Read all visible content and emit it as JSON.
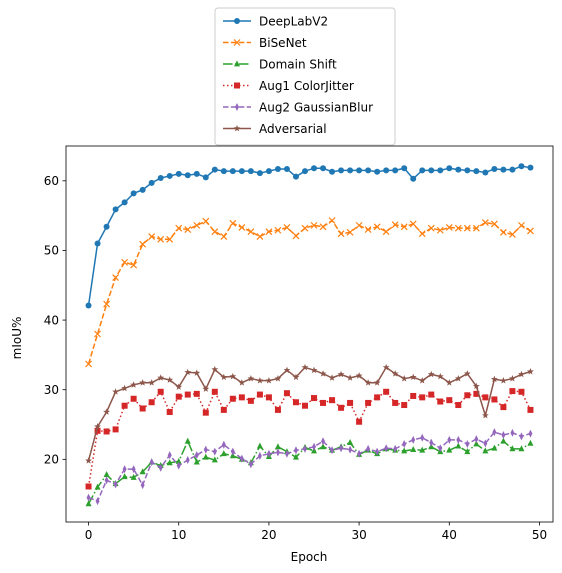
{
  "chart_data": {
    "type": "line",
    "xlabel": "Epoch",
    "ylabel": "mIoU%",
    "xlim": [
      -2.5,
      51.5
    ],
    "ylim": [
      11,
      65
    ],
    "xticks": [
      0,
      10,
      20,
      30,
      40,
      50
    ],
    "yticks": [
      20,
      30,
      40,
      50,
      60
    ],
    "grid": false,
    "legend_position": "above plot, centered",
    "x": [
      0,
      1,
      2,
      3,
      4,
      5,
      6,
      7,
      8,
      9,
      10,
      11,
      12,
      13,
      14,
      15,
      16,
      17,
      18,
      19,
      20,
      21,
      22,
      23,
      24,
      25,
      26,
      27,
      28,
      29,
      30,
      31,
      32,
      33,
      34,
      35,
      36,
      37,
      38,
      39,
      40,
      41,
      42,
      43,
      44,
      45,
      46,
      47,
      48,
      49
    ],
    "series": [
      {
        "name": "DeepLabV2",
        "color": "#1f77b4",
        "dash": "solid",
        "marker": "circle",
        "values": [
          42.1,
          51.0,
          53.4,
          55.9,
          56.9,
          58.2,
          58.7,
          59.7,
          60.4,
          60.7,
          61.0,
          60.8,
          61.0,
          60.5,
          61.6,
          61.4,
          61.4,
          61.4,
          61.4,
          61.1,
          61.4,
          61.7,
          61.7,
          60.6,
          61.4,
          61.8,
          61.8,
          61.3,
          61.5,
          61.5,
          61.5,
          61.5,
          61.3,
          61.5,
          61.5,
          61.8,
          60.3,
          61.5,
          61.5,
          61.5,
          61.8,
          61.6,
          61.5,
          61.4,
          61.2,
          61.7,
          61.6,
          61.6,
          62.1,
          61.9
        ]
      },
      {
        "name": "BiSeNet",
        "color": "#ff7f0e",
        "dash": "dashed",
        "marker": "x",
        "values": [
          33.7,
          38.0,
          42.3,
          46.1,
          48.3,
          47.9,
          50.9,
          52.0,
          51.6,
          51.6,
          53.2,
          53.0,
          53.6,
          54.2,
          52.7,
          52.0,
          53.9,
          53.3,
          52.7,
          52.0,
          52.7,
          52.9,
          53.3,
          52.1,
          53.2,
          53.6,
          53.4,
          54.3,
          52.4,
          52.6,
          53.6,
          53.0,
          53.4,
          52.7,
          53.7,
          53.4,
          53.8,
          52.4,
          53.2,
          52.9,
          53.3,
          53.2,
          53.2,
          53.2,
          54.0,
          53.8,
          52.6,
          52.3,
          53.6,
          52.8
        ]
      },
      {
        "name": "Domain Shift",
        "color": "#2ca02c",
        "dash": "dashdot",
        "marker": "triangle",
        "values": [
          13.6,
          16.0,
          17.8,
          16.5,
          17.5,
          17.4,
          18.2,
          19.6,
          19.1,
          19.5,
          19.7,
          22.6,
          19.6,
          20.3,
          19.9,
          20.8,
          20.5,
          20.0,
          19.5,
          21.9,
          20.4,
          21.8,
          21.1,
          20.3,
          21.7,
          21.2,
          21.8,
          21.3,
          21.8,
          22.4,
          20.7,
          21.3,
          20.8,
          21.5,
          21.3,
          21.2,
          21.4,
          21.3,
          21.8,
          21.1,
          21.3,
          21.9,
          21.1,
          22.2,
          21.2,
          21.6,
          22.6,
          21.5,
          21.5,
          22.3
        ]
      },
      {
        "name": "Aug1 ColorJitter",
        "color": "#d62728",
        "dash": "dotted",
        "marker": "square",
        "values": [
          16.1,
          24.1,
          24.0,
          24.3,
          27.7,
          28.7,
          27.3,
          28.2,
          29.7,
          26.8,
          29.0,
          29.3,
          29.4,
          26.7,
          29.7,
          27.1,
          28.7,
          28.9,
          28.4,
          29.3,
          28.9,
          27.1,
          29.5,
          28.2,
          27.7,
          28.8,
          28.1,
          28.5,
          27.4,
          28.1,
          25.4,
          28.1,
          28.9,
          29.7,
          28.1,
          27.8,
          29.1,
          28.9,
          29.3,
          28.3,
          28.5,
          27.8,
          29.2,
          29.4,
          28.9,
          28.6,
          27.5,
          29.8,
          29.7,
          27.1
        ]
      },
      {
        "name": "Aug2 GaussianBlur",
        "color": "#9467bd",
        "dash": "dashed",
        "marker": "thin_diamond",
        "values": [
          14.5,
          14.0,
          17.0,
          16.4,
          18.6,
          18.6,
          16.3,
          19.6,
          18.8,
          20.6,
          19.1,
          19.9,
          20.6,
          21.4,
          21.1,
          22.1,
          21.1,
          20.1,
          19.3,
          20.5,
          20.8,
          21.0,
          20.8,
          21.3,
          21.5,
          21.8,
          22.6,
          21.3,
          21.6,
          21.4,
          20.8,
          21.5,
          21.1,
          21.6,
          21.5,
          22.2,
          22.8,
          23.1,
          22.4,
          21.6,
          22.8,
          22.8,
          22.2,
          22.9,
          22.3,
          23.9,
          23.5,
          23.8,
          23.3,
          23.7
        ]
      },
      {
        "name": "Adversarial",
        "color": "#8c564b",
        "dash": "solid",
        "marker": "star",
        "values": [
          19.8,
          24.7,
          26.8,
          29.7,
          30.2,
          30.7,
          31.0,
          31.0,
          31.7,
          31.4,
          30.4,
          32.5,
          32.4,
          30.1,
          32.9,
          31.8,
          31.9,
          31.0,
          31.6,
          31.3,
          31.3,
          31.6,
          32.8,
          31.8,
          33.2,
          32.8,
          32.3,
          31.7,
          32.2,
          31.7,
          32.0,
          31.0,
          31.0,
          33.2,
          32.3,
          31.6,
          31.8,
          31.3,
          32.2,
          31.9,
          31.0,
          31.6,
          32.3,
          30.5,
          26.3,
          31.5,
          31.3,
          31.6,
          32.2,
          32.6
        ]
      }
    ]
  }
}
